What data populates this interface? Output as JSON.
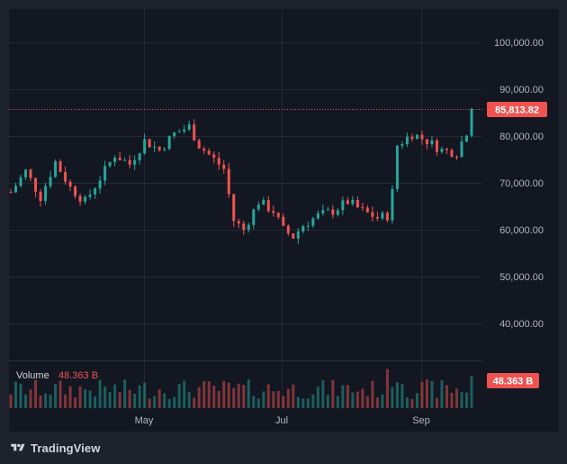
{
  "brand": {
    "name": "TradingView",
    "logo_icon": "tradingview-logo-icon"
  },
  "colors": {
    "background": "#131722",
    "frame": "#1e222d",
    "grid": "#232834",
    "up": "#26a69a",
    "down": "#ef5350",
    "text": "#b2b5be"
  },
  "chart_data": {
    "type": "candlestick",
    "title": "",
    "price_axis": {
      "ylim": [
        30000,
        105000
      ],
      "ticks": [
        "100,000.00",
        "90,000.00",
        "80,000.00",
        "70,000.00",
        "60,000.00",
        "50,000.00",
        "40,000.00"
      ],
      "tick_values": [
        100000,
        90000,
        80000,
        70000,
        60000,
        50000,
        40000
      ]
    },
    "time_axis": {
      "labels": [
        "May",
        "Jul",
        "Sep"
      ]
    },
    "last_price": {
      "value": 85813.82,
      "label": "85,813.82"
    },
    "grid": true,
    "price_path": [
      [
        0,
        68000
      ],
      [
        3,
        72500
      ],
      [
        6,
        67000
      ],
      [
        9,
        74500
      ],
      [
        12,
        69000
      ],
      [
        15,
        66000
      ],
      [
        18,
        71000
      ],
      [
        21,
        76000
      ],
      [
        24,
        74000
      ],
      [
        27,
        79000
      ],
      [
        30,
        77000
      ],
      [
        33,
        80500
      ],
      [
        36,
        82000
      ],
      [
        38,
        78000
      ],
      [
        41,
        75000
      ],
      [
        43,
        73000
      ],
      [
        45,
        62000
      ],
      [
        47,
        60000
      ],
      [
        50,
        66000
      ],
      [
        53,
        64000
      ],
      [
        55,
        60000
      ],
      [
        57,
        58500
      ],
      [
        59,
        61000
      ],
      [
        62,
        63000
      ],
      [
        65,
        64000
      ],
      [
        68,
        66000
      ],
      [
        71,
        64000
      ],
      [
        74,
        62500
      ],
      [
        76,
        63000
      ],
      [
        77,
        68000
      ],
      [
        78,
        78000
      ],
      [
        81,
        80500
      ],
      [
        84,
        79000
      ],
      [
        87,
        77000
      ],
      [
        90,
        76500
      ],
      [
        92,
        81000
      ],
      [
        93,
        85800
      ]
    ],
    "volume": {
      "label": "Volume",
      "value_label": "48.363 B",
      "last_value": 48.363,
      "unit": "B"
    }
  }
}
